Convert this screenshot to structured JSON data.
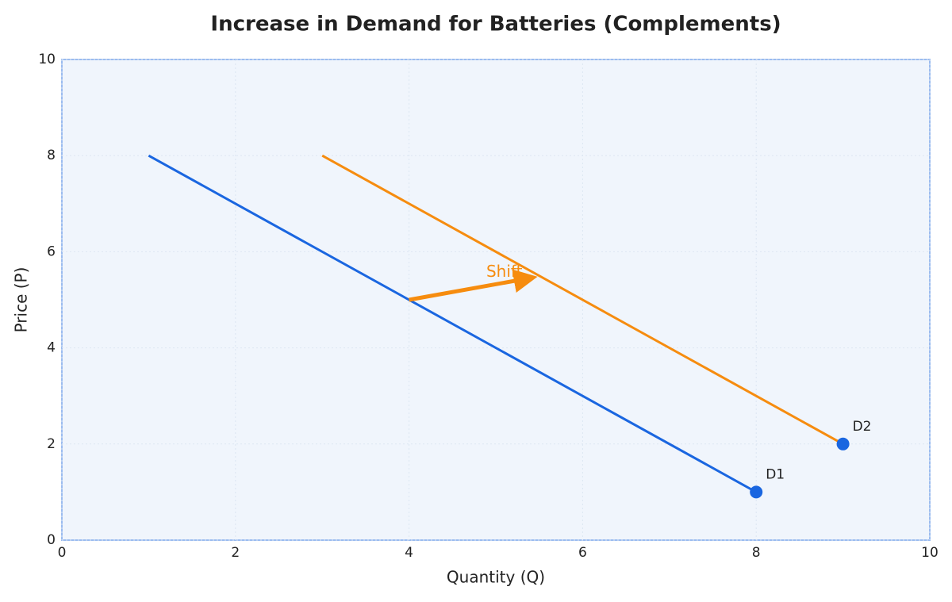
{
  "chart_data": {
    "type": "line",
    "title": "Increase in Demand for Batteries (Complements)",
    "x_label": "Quantity (Q)",
    "y_label": "Price (P)",
    "xlim": [
      0,
      10
    ],
    "ylim": [
      0,
      10
    ],
    "xticks": [
      0,
      2,
      4,
      6,
      8,
      10
    ],
    "yticks": [
      0,
      2,
      4,
      6,
      8,
      10
    ],
    "grid": true,
    "series": [
      {
        "name": "D1",
        "color": "#1a66e0",
        "marker_color": "#1a66e0",
        "x": [
          1,
          8
        ],
        "values": [
          8,
          1
        ]
      },
      {
        "name": "D2",
        "color": "#f68c0f",
        "marker_color": "#1a66e0",
        "x": [
          3,
          9
        ],
        "values": [
          8,
          2
        ]
      }
    ],
    "annotations": [
      {
        "text": "Shift",
        "color": "#f68c0f",
        "from": [
          4,
          5
        ],
        "to": [
          5.5,
          5.5
        ]
      }
    ]
  }
}
